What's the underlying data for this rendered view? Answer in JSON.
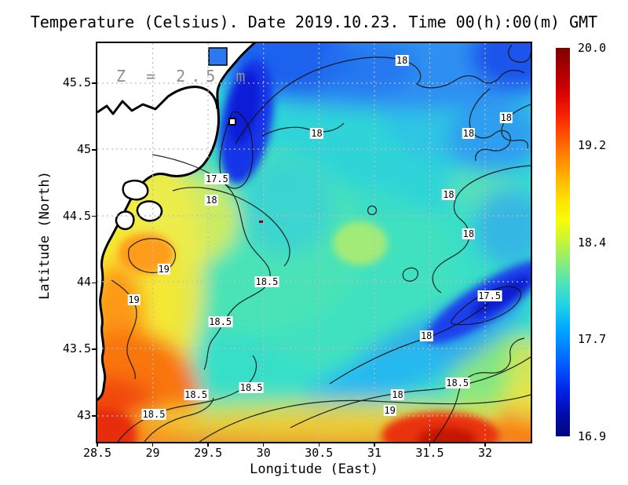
{
  "title": "Temperature (Celsius). Date 2019.10.23. Time 00(h):00(m) GMT",
  "annotation": "Z = 2.5 m",
  "x_axis": {
    "label": "Longitude (East)",
    "ticks": [
      "28.5",
      "29",
      "29.5",
      "30",
      "30.5",
      "31",
      "31.5",
      "32"
    ]
  },
  "y_axis": {
    "label": "Latitude (North)",
    "ticks": [
      "45.5",
      "45",
      "44.5",
      "44",
      "43.5",
      "43"
    ]
  },
  "colorbar": {
    "tick_labels": [
      "20.0",
      "19.2",
      "18.4",
      "17.7",
      "16.9"
    ],
    "min": 16.9,
    "max": 20.0,
    "colormap": "jet",
    "colors_top_to_bottom": [
      "#7F0000",
      "#A80000",
      "#D40000",
      "#F71C00",
      "#FF4E00",
      "#FF8200",
      "#FFB300",
      "#FFE100",
      "#F8FC06",
      "#C4F43A",
      "#86EC7E",
      "#4AE2BE",
      "#1ED0E8",
      "#00A8FF",
      "#007CFF",
      "#004CFF",
      "#001EE4",
      "#000CA8",
      "#00067F"
    ]
  },
  "chart_data": {
    "type": "heatmap",
    "title": "Temperature (Celsius). Date 2019.10.23. Time 00(h):00(m) GMT",
    "annotation": "Z = 2.5 m",
    "xlabel": "Longitude (East)",
    "ylabel": "Latitude (North)",
    "xlim": [
      28.5,
      32.41
    ],
    "ylim": [
      42.73,
      45.81
    ],
    "xticks": [
      28.5,
      29,
      29.5,
      30,
      30.5,
      31,
      31.5,
      32
    ],
    "yticks": [
      45.5,
      45,
      44.5,
      44,
      43.5,
      43
    ],
    "grid": "dotted gray at every tick",
    "legend_position": "colorbar right",
    "colorbar_range": [
      16.9,
      20.0
    ],
    "colorbar_tick_values": [
      20.0,
      19.2,
      18.4,
      17.7,
      16.9
    ],
    "contour_levels": [
      17.5,
      18.0,
      18.5,
      19.0
    ],
    "contour_labels": [
      {
        "value": "18",
        "lon": 31.25,
        "lat": 45.67
      },
      {
        "value": "18",
        "lon": 30.48,
        "lat": 45.12
      },
      {
        "value": "18",
        "lon": 32.19,
        "lat": 45.24
      },
      {
        "value": "18",
        "lon": 31.85,
        "lat": 45.12
      },
      {
        "value": "17.5",
        "lon": 29.58,
        "lat": 44.78
      },
      {
        "value": "18",
        "lon": 29.53,
        "lat": 44.62
      },
      {
        "value": "18",
        "lon": 31.67,
        "lat": 44.66
      },
      {
        "value": "18",
        "lon": 31.85,
        "lat": 44.37
      },
      {
        "value": "17.5",
        "lon": 32.04,
        "lat": 43.9
      },
      {
        "value": "19",
        "lon": 29.1,
        "lat": 44.1
      },
      {
        "value": "19",
        "lon": 28.83,
        "lat": 43.87
      },
      {
        "value": "18.5",
        "lon": 30.03,
        "lat": 44.01
      },
      {
        "value": "18.5",
        "lon": 29.61,
        "lat": 43.71
      },
      {
        "value": "18.5",
        "lon": 29.89,
        "lat": 43.21
      },
      {
        "value": "18.5",
        "lon": 29.39,
        "lat": 43.16
      },
      {
        "value": "18.5",
        "lon": 29.01,
        "lat": 43.01
      },
      {
        "value": "18.5",
        "lon": 31.75,
        "lat": 43.25
      },
      {
        "value": "18",
        "lon": 31.47,
        "lat": 43.6
      },
      {
        "value": "18",
        "lon": 31.21,
        "lat": 43.16
      },
      {
        "value": "19",
        "lon": 31.14,
        "lat": 43.04
      }
    ],
    "field_summary": [
      {
        "area": "northwest coastal plume along Danube delta coast",
        "approx_temp_c": 17.0,
        "color": "dark blue"
      },
      {
        "area": "northern band of basin",
        "approx_temp_c": 17.7,
        "color": "blue"
      },
      {
        "area": "central basin",
        "approx_temp_c": 18.3,
        "color": "cyan-green"
      },
      {
        "area": "west coastal band",
        "approx_temp_c": 18.8,
        "color": "yellow"
      },
      {
        "area": "southwest corner",
        "approx_temp_c": 19.6,
        "color": "orange-red"
      },
      {
        "area": "south-central hotspot",
        "approx_temp_c": 19.8,
        "color": "dark red"
      },
      {
        "area": "east-central cold streak",
        "approx_temp_c": 17.3,
        "color": "dark blue"
      }
    ],
    "land": "white landmass with thick black coastline on west and northwest (western Black Sea coast)"
  }
}
